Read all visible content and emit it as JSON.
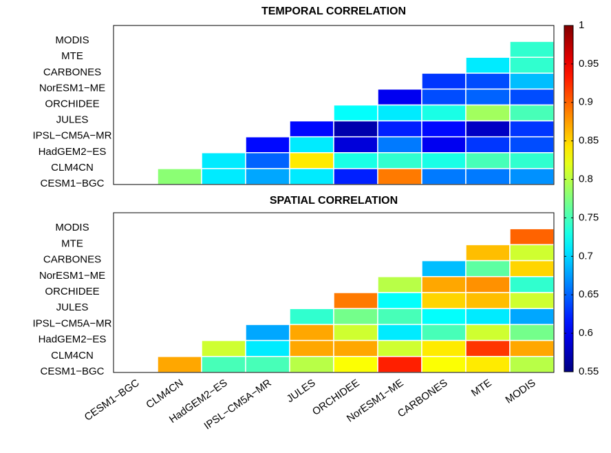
{
  "chart_data": [
    {
      "type": "heatmap",
      "title": "TEMPORAL CORRELATION",
      "y": [
        "MODIS",
        "MTE",
        "CARBONES",
        "NorESM1−ME",
        "ORCHIDEE",
        "JULES",
        "IPSL−CM5A−MR",
        "HadGEM2−ES",
        "CLM4CN",
        "CESM1−BGC"
      ],
      "values": [
        [
          null,
          null,
          null,
          null,
          null,
          null,
          null,
          null,
          null,
          null
        ],
        [
          null,
          null,
          null,
          null,
          null,
          null,
          null,
          null,
          null,
          0.74
        ],
        [
          null,
          null,
          null,
          null,
          null,
          null,
          null,
          null,
          0.71,
          0.74
        ],
        [
          null,
          null,
          null,
          null,
          null,
          null,
          null,
          0.63,
          0.64,
          0.69
        ],
        [
          null,
          null,
          null,
          null,
          null,
          null,
          0.6,
          0.64,
          0.65,
          0.64
        ],
        [
          null,
          null,
          null,
          null,
          null,
          0.72,
          0.71,
          0.73,
          0.79,
          0.75
        ],
        [
          null,
          null,
          null,
          null,
          0.61,
          0.57,
          0.62,
          0.61,
          0.58,
          0.63
        ],
        [
          null,
          null,
          null,
          0.61,
          0.71,
          0.59,
          0.66,
          0.6,
          0.63,
          0.64
        ],
        [
          null,
          null,
          0.71,
          0.65,
          0.84,
          0.73,
          0.74,
          0.73,
          0.75,
          0.74
        ],
        [
          null,
          0.78,
          0.71,
          0.68,
          0.71,
          0.62,
          0.89,
          0.66,
          0.66,
          0.67
        ]
      ],
      "colormap": "jet",
      "clim": [
        0.55,
        1
      ],
      "cticks": [
        0.55,
        0.6,
        0.65,
        0.7,
        0.75,
        0.8,
        0.85,
        0.9,
        0.95,
        1
      ]
    },
    {
      "type": "heatmap",
      "title": "SPATIAL CORRELATION",
      "x": [
        "CESM1−BGC",
        "CLM4CN",
        "HadGEM2−ES",
        "IPSL−CM5A−MR",
        "JULES",
        "ORCHIDEE",
        "NorESM1−ME",
        "CARBONES",
        "MTE",
        "MODIS"
      ],
      "y": [
        "MODIS",
        "MTE",
        "CARBONES",
        "NorESM1−ME",
        "ORCHIDEE",
        "JULES",
        "IPSL−CM5A−MR",
        "HadGEM2−ES",
        "CLM4CN",
        "CESM1−BGC"
      ],
      "values": [
        [
          null,
          null,
          null,
          null,
          null,
          null,
          null,
          null,
          null,
          null
        ],
        [
          null,
          null,
          null,
          null,
          null,
          null,
          null,
          null,
          null,
          0.9
        ],
        [
          null,
          null,
          null,
          null,
          null,
          null,
          null,
          null,
          0.86,
          0.81
        ],
        [
          null,
          null,
          null,
          null,
          null,
          null,
          null,
          0.69,
          0.76,
          0.85
        ],
        [
          null,
          null,
          null,
          null,
          null,
          null,
          0.8,
          0.87,
          0.88,
          0.74
        ],
        [
          null,
          null,
          null,
          null,
          null,
          0.89,
          0.72,
          0.85,
          0.86,
          0.81
        ],
        [
          null,
          null,
          null,
          null,
          0.74,
          0.77,
          0.75,
          0.72,
          0.71,
          0.68
        ],
        [
          null,
          null,
          null,
          0.68,
          0.87,
          0.81,
          0.71,
          0.75,
          0.81,
          0.77
        ],
        [
          null,
          null,
          0.81,
          0.71,
          0.87,
          0.87,
          0.81,
          0.84,
          0.92,
          0.87
        ],
        [
          null,
          0.87,
          0.75,
          0.75,
          0.8,
          0.83,
          0.93,
          0.83,
          0.84,
          0.8
        ]
      ],
      "colormap": "jet",
      "clim": [
        0.55,
        1
      ]
    }
  ]
}
